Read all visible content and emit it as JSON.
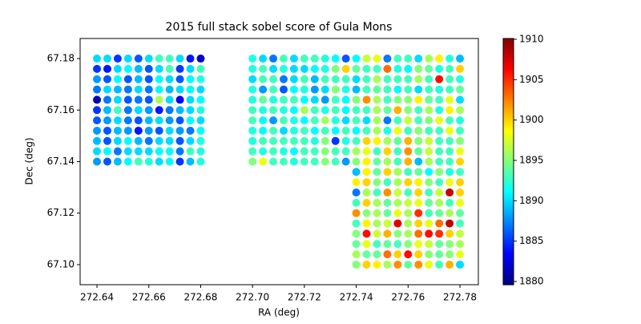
{
  "chart_data": {
    "type": "scatter",
    "title": "2015 full stack sobel score of Gula Mons",
    "x_label": "RA (deg)",
    "y_label": "Dec (deg)",
    "colormap": "jet",
    "xlim": [
      272.6335,
      272.7871
    ],
    "ylim": [
      67.0922,
      67.1878
    ],
    "clim": [
      1879.6,
      1910.1
    ],
    "xticks": [
      272.64,
      272.66,
      272.68,
      {
        "value": 272.7,
        "label": "272.70"
      },
      272.72,
      272.74,
      272.76,
      272.78
    ],
    "yticks": [
      {
        "value": 67.1,
        "label": "67.10"
      },
      67.12,
      67.14,
      67.16,
      67.18
    ],
    "cticks": [
      1880,
      1885,
      1890,
      1895,
      1900,
      1905,
      1910
    ],
    "x": [
      272.64,
      272.644,
      272.648,
      272.652,
      272.656,
      272.66,
      272.664,
      272.668,
      272.672,
      272.676,
      272.68,
      272.64,
      272.644,
      272.648,
      272.652,
      272.656,
      272.66,
      272.664,
      272.668,
      272.672,
      272.676,
      272.68,
      272.64,
      272.644,
      272.648,
      272.652,
      272.656,
      272.66,
      272.664,
      272.668,
      272.672,
      272.676,
      272.68,
      272.64,
      272.644,
      272.648,
      272.652,
      272.656,
      272.66,
      272.664,
      272.668,
      272.672,
      272.676,
      272.68,
      272.64,
      272.644,
      272.648,
      272.652,
      272.656,
      272.66,
      272.664,
      272.668,
      272.672,
      272.676,
      272.68,
      272.64,
      272.644,
      272.648,
      272.652,
      272.656,
      272.66,
      272.664,
      272.668,
      272.672,
      272.676,
      272.68,
      272.64,
      272.644,
      272.648,
      272.652,
      272.656,
      272.66,
      272.664,
      272.668,
      272.672,
      272.676,
      272.68,
      272.64,
      272.644,
      272.648,
      272.652,
      272.656,
      272.66,
      272.664,
      272.668,
      272.672,
      272.676,
      272.68,
      272.64,
      272.644,
      272.648,
      272.652,
      272.656,
      272.66,
      272.664,
      272.668,
      272.672,
      272.676,
      272.68,
      272.64,
      272.644,
      272.648,
      272.652,
      272.656,
      272.66,
      272.664,
      272.668,
      272.672,
      272.676,
      272.68,
      272.64,
      272.644,
      272.648,
      272.652,
      272.656,
      272.66,
      272.664,
      272.668,
      272.672,
      272.676,
      272.68,
      272.7,
      272.704,
      272.708,
      272.712,
      272.716,
      272.72,
      272.724,
      272.728,
      272.732,
      272.736,
      272.74,
      272.744,
      272.748,
      272.752,
      272.756,
      272.76,
      272.764,
      272.768,
      272.772,
      272.776,
      272.78,
      272.7,
      272.704,
      272.708,
      272.712,
      272.716,
      272.72,
      272.724,
      272.728,
      272.732,
      272.736,
      272.74,
      272.744,
      272.748,
      272.752,
      272.756,
      272.76,
      272.764,
      272.768,
      272.772,
      272.776,
      272.78,
      272.7,
      272.704,
      272.708,
      272.712,
      272.716,
      272.72,
      272.724,
      272.728,
      272.732,
      272.736,
      272.74,
      272.744,
      272.748,
      272.752,
      272.756,
      272.76,
      272.764,
      272.768,
      272.772,
      272.776,
      272.78,
      272.7,
      272.704,
      272.708,
      272.712,
      272.716,
      272.72,
      272.724,
      272.728,
      272.732,
      272.736,
      272.74,
      272.744,
      272.748,
      272.752,
      272.756,
      272.76,
      272.764,
      272.768,
      272.772,
      272.776,
      272.78,
      272.7,
      272.704,
      272.708,
      272.712,
      272.716,
      272.72,
      272.724,
      272.728,
      272.732,
      272.736,
      272.74,
      272.744,
      272.748,
      272.752,
      272.756,
      272.76,
      272.764,
      272.768,
      272.772,
      272.776,
      272.78,
      272.7,
      272.704,
      272.708,
      272.712,
      272.716,
      272.72,
      272.724,
      272.728,
      272.732,
      272.736,
      272.74,
      272.744,
      272.748,
      272.752,
      272.756,
      272.76,
      272.764,
      272.768,
      272.772,
      272.776,
      272.78,
      272.7,
      272.704,
      272.708,
      272.712,
      272.716,
      272.72,
      272.724,
      272.728,
      272.732,
      272.736,
      272.74,
      272.744,
      272.748,
      272.752,
      272.756,
      272.76,
      272.764,
      272.768,
      272.772,
      272.776,
      272.78,
      272.7,
      272.704,
      272.708,
      272.712,
      272.716,
      272.72,
      272.724,
      272.728,
      272.732,
      272.736,
      272.74,
      272.744,
      272.748,
      272.752,
      272.756,
      272.76,
      272.764,
      272.768,
      272.772,
      272.776,
      272.78,
      272.7,
      272.704,
      272.708,
      272.712,
      272.716,
      272.72,
      272.724,
      272.728,
      272.732,
      272.736,
      272.74,
      272.744,
      272.748,
      272.752,
      272.756,
      272.76,
      272.764,
      272.768,
      272.772,
      272.776,
      272.78,
      272.7,
      272.704,
      272.708,
      272.712,
      272.716,
      272.72,
      272.724,
      272.728,
      272.732,
      272.736,
      272.74,
      272.744,
      272.748,
      272.752,
      272.756,
      272.76,
      272.764,
      272.768,
      272.772,
      272.776,
      272.78,
      272.7,
      272.704,
      272.708,
      272.712,
      272.716,
      272.72,
      272.724,
      272.728,
      272.732,
      272.736,
      272.74,
      272.744,
      272.748,
      272.752,
      272.756,
      272.76,
      272.764,
      272.768,
      272.772,
      272.776,
      272.78,
      272.74,
      272.744,
      272.748,
      272.752,
      272.756,
      272.76,
      272.764,
      272.768,
      272.772,
      272.776,
      272.78,
      272.74,
      272.744,
      272.748,
      272.752,
      272.756,
      272.76,
      272.764,
      272.768,
      272.772,
      272.776,
      272.78,
      272.74,
      272.744,
      272.748,
      272.752,
      272.756,
      272.76,
      272.764,
      272.768,
      272.772,
      272.776,
      272.78,
      272.74,
      272.744,
      272.748,
      272.752,
      272.756,
      272.76,
      272.764,
      272.768,
      272.772,
      272.776,
      272.78,
      272.74,
      272.744,
      272.748,
      272.752,
      272.756,
      272.76,
      272.764,
      272.768,
      272.772,
      272.776,
      272.78,
      272.74,
      272.744,
      272.748,
      272.752,
      272.756,
      272.76,
      272.764,
      272.768,
      272.772,
      272.776,
      272.78,
      272.74,
      272.744,
      272.748,
      272.752,
      272.756,
      272.76,
      272.764,
      272.768,
      272.772,
      272.776,
      272.78,
      272.74,
      272.744,
      272.748,
      272.752,
      272.756,
      272.76,
      272.764,
      272.768,
      272.772,
      272.776,
      272.78,
      272.74,
      272.744,
      272.748,
      272.752,
      272.756,
      272.76,
      272.764,
      272.768,
      272.772,
      272.776,
      272.78,
      272.74,
      272.744,
      272.748,
      272.752,
      272.756,
      272.76,
      272.764,
      272.768,
      272.772,
      272.776,
      272.78
    ],
    "y": [
      67.18,
      67.18,
      67.18,
      67.18,
      67.18,
      67.18,
      67.18,
      67.18,
      67.18,
      67.18,
      67.18,
      67.176,
      67.176,
      67.176,
      67.176,
      67.176,
      67.176,
      67.176,
      67.176,
      67.176,
      67.176,
      67.176,
      67.172,
      67.172,
      67.172,
      67.172,
      67.172,
      67.172,
      67.172,
      67.172,
      67.172,
      67.172,
      67.172,
      67.168,
      67.168,
      67.168,
      67.168,
      67.168,
      67.168,
      67.168,
      67.168,
      67.168,
      67.168,
      67.168,
      67.164,
      67.164,
      67.164,
      67.164,
      67.164,
      67.164,
      67.164,
      67.164,
      67.164,
      67.164,
      67.164,
      67.16,
      67.16,
      67.16,
      67.16,
      67.16,
      67.16,
      67.16,
      67.16,
      67.16,
      67.16,
      67.16,
      67.156,
      67.156,
      67.156,
      67.156,
      67.156,
      67.156,
      67.156,
      67.156,
      67.156,
      67.156,
      67.156,
      67.152,
      67.152,
      67.152,
      67.152,
      67.152,
      67.152,
      67.152,
      67.152,
      67.152,
      67.152,
      67.152,
      67.148,
      67.148,
      67.148,
      67.148,
      67.148,
      67.148,
      67.148,
      67.148,
      67.148,
      67.148,
      67.148,
      67.144,
      67.144,
      67.144,
      67.144,
      67.144,
      67.144,
      67.144,
      67.144,
      67.144,
      67.144,
      67.144,
      67.14,
      67.14,
      67.14,
      67.14,
      67.14,
      67.14,
      67.14,
      67.14,
      67.14,
      67.14,
      67.14,
      67.18,
      67.18,
      67.18,
      67.18,
      67.18,
      67.18,
      67.18,
      67.18,
      67.18,
      67.18,
      67.18,
      67.18,
      67.18,
      67.18,
      67.18,
      67.18,
      67.18,
      67.18,
      67.18,
      67.18,
      67.18,
      67.176,
      67.176,
      67.176,
      67.176,
      67.176,
      67.176,
      67.176,
      67.176,
      67.176,
      67.176,
      67.176,
      67.176,
      67.176,
      67.176,
      67.176,
      67.176,
      67.176,
      67.176,
      67.176,
      67.176,
      67.176,
      67.172,
      67.172,
      67.172,
      67.172,
      67.172,
      67.172,
      67.172,
      67.172,
      67.172,
      67.172,
      67.172,
      67.172,
      67.172,
      67.172,
      67.172,
      67.172,
      67.172,
      67.172,
      67.172,
      67.172,
      67.172,
      67.168,
      67.168,
      67.168,
      67.168,
      67.168,
      67.168,
      67.168,
      67.168,
      67.168,
      67.168,
      67.168,
      67.168,
      67.168,
      67.168,
      67.168,
      67.168,
      67.168,
      67.168,
      67.168,
      67.168,
      67.168,
      67.164,
      67.164,
      67.164,
      67.164,
      67.164,
      67.164,
      67.164,
      67.164,
      67.164,
      67.164,
      67.164,
      67.164,
      67.164,
      67.164,
      67.164,
      67.164,
      67.164,
      67.164,
      67.164,
      67.164,
      67.164,
      67.16,
      67.16,
      67.16,
      67.16,
      67.16,
      67.16,
      67.16,
      67.16,
      67.16,
      67.16,
      67.16,
      67.16,
      67.16,
      67.16,
      67.16,
      67.16,
      67.16,
      67.16,
      67.16,
      67.16,
      67.16,
      67.156,
      67.156,
      67.156,
      67.156,
      67.156,
      67.156,
      67.156,
      67.156,
      67.156,
      67.156,
      67.156,
      67.156,
      67.156,
      67.156,
      67.156,
      67.156,
      67.156,
      67.156,
      67.156,
      67.156,
      67.156,
      67.152,
      67.152,
      67.152,
      67.152,
      67.152,
      67.152,
      67.152,
      67.152,
      67.152,
      67.152,
      67.152,
      67.152,
      67.152,
      67.152,
      67.152,
      67.152,
      67.152,
      67.152,
      67.152,
      67.152,
      67.152,
      67.148,
      67.148,
      67.148,
      67.148,
      67.148,
      67.148,
      67.148,
      67.148,
      67.148,
      67.148,
      67.148,
      67.148,
      67.148,
      67.148,
      67.148,
      67.148,
      67.148,
      67.148,
      67.148,
      67.148,
      67.148,
      67.144,
      67.144,
      67.144,
      67.144,
      67.144,
      67.144,
      67.144,
      67.144,
      67.144,
      67.144,
      67.144,
      67.144,
      67.144,
      67.144,
      67.144,
      67.144,
      67.144,
      67.144,
      67.144,
      67.144,
      67.144,
      67.14,
      67.14,
      67.14,
      67.14,
      67.14,
      67.14,
      67.14,
      67.14,
      67.14,
      67.14,
      67.14,
      67.14,
      67.14,
      67.14,
      67.14,
      67.14,
      67.14,
      67.14,
      67.14,
      67.14,
      67.14,
      67.136,
      67.136,
      67.136,
      67.136,
      67.136,
      67.136,
      67.136,
      67.136,
      67.136,
      67.136,
      67.136,
      67.132,
      67.132,
      67.132,
      67.132,
      67.132,
      67.132,
      67.132,
      67.132,
      67.132,
      67.132,
      67.132,
      67.128,
      67.128,
      67.128,
      67.128,
      67.128,
      67.128,
      67.128,
      67.128,
      67.128,
      67.128,
      67.128,
      67.124,
      67.124,
      67.124,
      67.124,
      67.124,
      67.124,
      67.124,
      67.124,
      67.124,
      67.124,
      67.124,
      67.12,
      67.12,
      67.12,
      67.12,
      67.12,
      67.12,
      67.12,
      67.12,
      67.12,
      67.12,
      67.12,
      67.116,
      67.116,
      67.116,
      67.116,
      67.116,
      67.116,
      67.116,
      67.116,
      67.116,
      67.116,
      67.116,
      67.112,
      67.112,
      67.112,
      67.112,
      67.112,
      67.112,
      67.112,
      67.112,
      67.112,
      67.112,
      67.112,
      67.108,
      67.108,
      67.108,
      67.108,
      67.108,
      67.108,
      67.108,
      67.108,
      67.108,
      67.108,
      67.108,
      67.104,
      67.104,
      67.104,
      67.104,
      67.104,
      67.104,
      67.104,
      67.104,
      67.104,
      67.104,
      67.104,
      67.1,
      67.1,
      67.1,
      67.1,
      67.1,
      67.1,
      67.1,
      67.1,
      67.1,
      67.1,
      67.1
    ],
    "values": [
      1890,
      1890,
      1885,
      1890,
      1886,
      1890,
      1893,
      1893,
      1890,
      1884,
      1882,
      1885,
      1884,
      1890,
      1891,
      1889,
      1886,
      1890,
      1893,
      1885,
      1890,
      1893,
      1888,
      1886,
      1891,
      1886,
      1889,
      1886,
      1891,
      1890,
      1886,
      1891,
      1892,
      1887,
      1890,
      1889,
      1887,
      1890,
      1887,
      1891,
      1889,
      1890,
      1891,
      1890,
      1881,
      1887,
      1890,
      1886,
      1887,
      1886,
      1896,
      1890,
      1883,
      1890,
      1891,
      1885,
      1889,
      1893,
      1887,
      1890,
      1888,
      1884,
      1887,
      1889,
      1890,
      1892,
      1886,
      1888,
      1890,
      1887,
      1886,
      1889,
      1890,
      1888,
      1886,
      1891,
      1890,
      1888,
      1886,
      1889,
      1888,
      1884,
      1888,
      1886,
      1890,
      1888,
      1887,
      1891,
      1889,
      1886,
      1890,
      1891,
      1889,
      1887,
      1890,
      1890,
      1886,
      1890,
      1892,
      1890,
      1891,
      1887,
      1890,
      1890,
      1890,
      1891,
      1891,
      1887,
      1893,
      1892,
      1888,
      1886,
      1889,
      1891,
      1893,
      1892,
      1890,
      1891,
      1885,
      1889,
      1892,
      1892,
      1890,
      1887,
      1893,
      1890,
      1893,
      1893,
      1892,
      1891,
      1886,
      1891,
      1897,
      1898,
      1887,
      1893,
      1893,
      1890,
      1896,
      1899,
      1892,
      1889,
      1892,
      1893,
      1890,
      1892,
      1890,
      1890,
      1891,
      1892,
      1895,
      1900,
      1894,
      1893,
      1893,
      1903,
      1892,
      1891,
      1895,
      1894,
      1892,
      1893,
      1900,
      1890,
      1893,
      1893,
      1887,
      1890,
      1893,
      1889,
      1893,
      1893,
      1893,
      1890,
      1893,
      1896,
      1893,
      1893,
      1893,
      1896,
      1893,
      1906,
      1893,
      1892,
      1892,
      1888,
      1893,
      1886,
      1891,
      1892,
      1888,
      1890,
      1895,
      1892,
      1889,
      1893,
      1894,
      1893,
      1891,
      1893,
      1890,
      1893,
      1892,
      1893,
      1894,
      1892,
      1894,
      1892,
      1893,
      1893,
      1891,
      1890,
      1888,
      1893,
      1891,
      1895,
      1902,
      1896,
      1893,
      1895,
      1895,
      1899,
      1894,
      1893,
      1898,
      1890,
      1893,
      1892,
      1893,
      1892,
      1891,
      1896,
      1893,
      1892,
      1893,
      1891,
      1893,
      1893,
      1896,
      1894,
      1901,
      1895,
      1893,
      1896,
      1892,
      1899,
      1896,
      1893,
      1891,
      1888,
      1893,
      1892,
      1891,
      1893,
      1896,
      1892,
      1890,
      1893,
      1890,
      1896,
      1887,
      1893,
      1897,
      1893,
      1895,
      1898,
      1893,
      1892,
      1892,
      1891,
      1893,
      1890,
      1892,
      1893,
      1891,
      1893,
      1891,
      1893,
      1891,
      1893,
      1896,
      1892,
      1898,
      1893,
      1895,
      1893,
      1893,
      1898,
      1893,
      1892,
      1893,
      1893,
      1893,
      1893,
      1893,
      1892,
      1895,
      1885,
      1892,
      1893,
      1900,
      1899,
      1896,
      1894,
      1901,
      1895,
      1897,
      1893,
      1893,
      1895,
      1893,
      1892,
      1893,
      1892,
      1891,
      1893,
      1893,
      1895,
      1893,
      1893,
      1896,
      1898,
      1893,
      1900,
      1893,
      1902,
      1894,
      1897,
      1893,
      1893,
      1898,
      1895,
      1898,
      1893,
      1893,
      1892,
      1893,
      1893,
      1895,
      1893,
      1888,
      1895,
      1899,
      1894,
      1896,
      1893,
      1901,
      1889,
      1896,
      1893,
      1893,
      1900,
      1889,
      1899,
      1894,
      1900,
      1896,
      1893,
      1894,
      1891,
      1895,
      1892,
      1893,
      1899,
      1900,
      1895,
      1893,
      1896,
      1900,
      1899,
      1895,
      1893,
      1898,
      1900,
      1887,
      1896,
      1893,
      1902,
      1897,
      1893,
      1900,
      1893,
      1897,
      1908,
      1900,
      1893,
      1900,
      1896,
      1894,
      1896,
      1897,
      1898,
      1894,
      1896,
      1893,
      1898,
      1902,
      1895,
      1896,
      1894,
      1898,
      1896,
      1905,
      1893,
      1894,
      1896,
      1894,
      1893,
      1899,
      1896,
      1897,
      1907,
      1896,
      1900,
      1898,
      1903,
      1908,
      1893,
      1895,
      1906,
      1897,
      1901,
      1895,
      1896,
      1903,
      1906,
      1905,
      1900,
      1897,
      1894,
      1898,
      1893,
      1894,
      1893,
      1895,
      1898,
      1897,
      1894,
      1895,
      1896,
      1896,
      1894,
      1894,
      1903,
      1900,
      1906,
      1900,
      1895,
      1894,
      1895,
      1898,
      1895,
      1900,
      1899,
      1896,
      1902,
      1894,
      1902,
      1898,
      1893,
      1901,
      1890
    ]
  }
}
